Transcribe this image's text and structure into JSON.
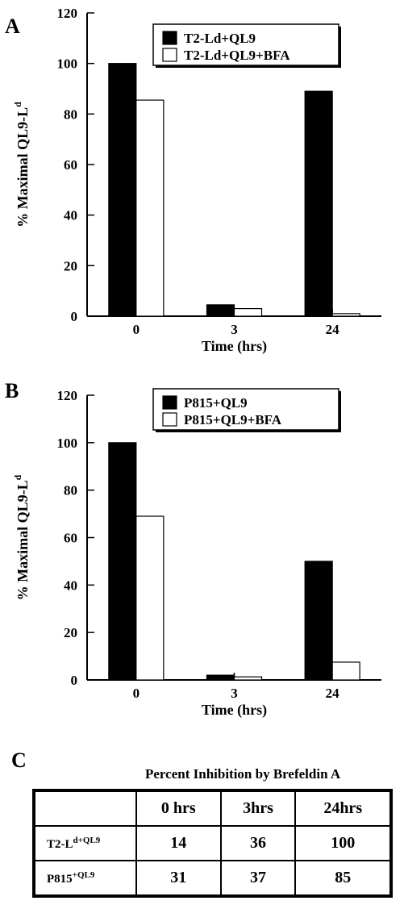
{
  "chart_data": [
    {
      "type": "bar",
      "panel_label": "A",
      "categories": [
        "0",
        "3",
        "24"
      ],
      "series": [
        {
          "name": "T2-Ld+QL9",
          "values": [
            100,
            4.5,
            89
          ],
          "fill": "#000000"
        },
        {
          "name": "T2-Ld+QL9+BFA",
          "values": [
            85.5,
            3,
            1
          ],
          "fill": "#ffffff"
        }
      ],
      "xlabel": "Time (hrs)",
      "ylabel": "% Maximal QL9-L",
      "ylabel_sup": "d",
      "ylim": [
        0,
        120
      ],
      "yticks": [
        0,
        20,
        40,
        60,
        80,
        100,
        120
      ],
      "legend_position": "top-right",
      "grid": false
    },
    {
      "type": "bar",
      "panel_label": "B",
      "categories": [
        "0",
        "3",
        "24"
      ],
      "series": [
        {
          "name": "P815+QL9",
          "values": [
            100,
            2,
            50
          ],
          "fill": "#000000"
        },
        {
          "name": "P815+QL9+BFA",
          "values": [
            69,
            1.3,
            7.5
          ],
          "fill": "#ffffff"
        }
      ],
      "xlabel": "Time (hrs)",
      "ylabel": "% Maximal QL9-L",
      "ylabel_sup": "d",
      "ylim": [
        0,
        120
      ],
      "yticks": [
        0,
        20,
        40,
        60,
        80,
        100,
        120
      ],
      "legend_position": "top-right",
      "grid": false
    }
  ],
  "table_c": {
    "panel_label": "C",
    "title": "Percent Inhibition by Brefeldin A",
    "headers": [
      "",
      "0 hrs",
      "3hrs",
      "24hrs"
    ],
    "rows": [
      {
        "label_main": "T2-L",
        "label_sup": "d+QL9",
        "values": [
          "14",
          "36",
          "100"
        ]
      },
      {
        "label_main": "P815",
        "label_sup": "+QL9",
        "values": [
          "31",
          "37",
          "85"
        ]
      }
    ]
  }
}
